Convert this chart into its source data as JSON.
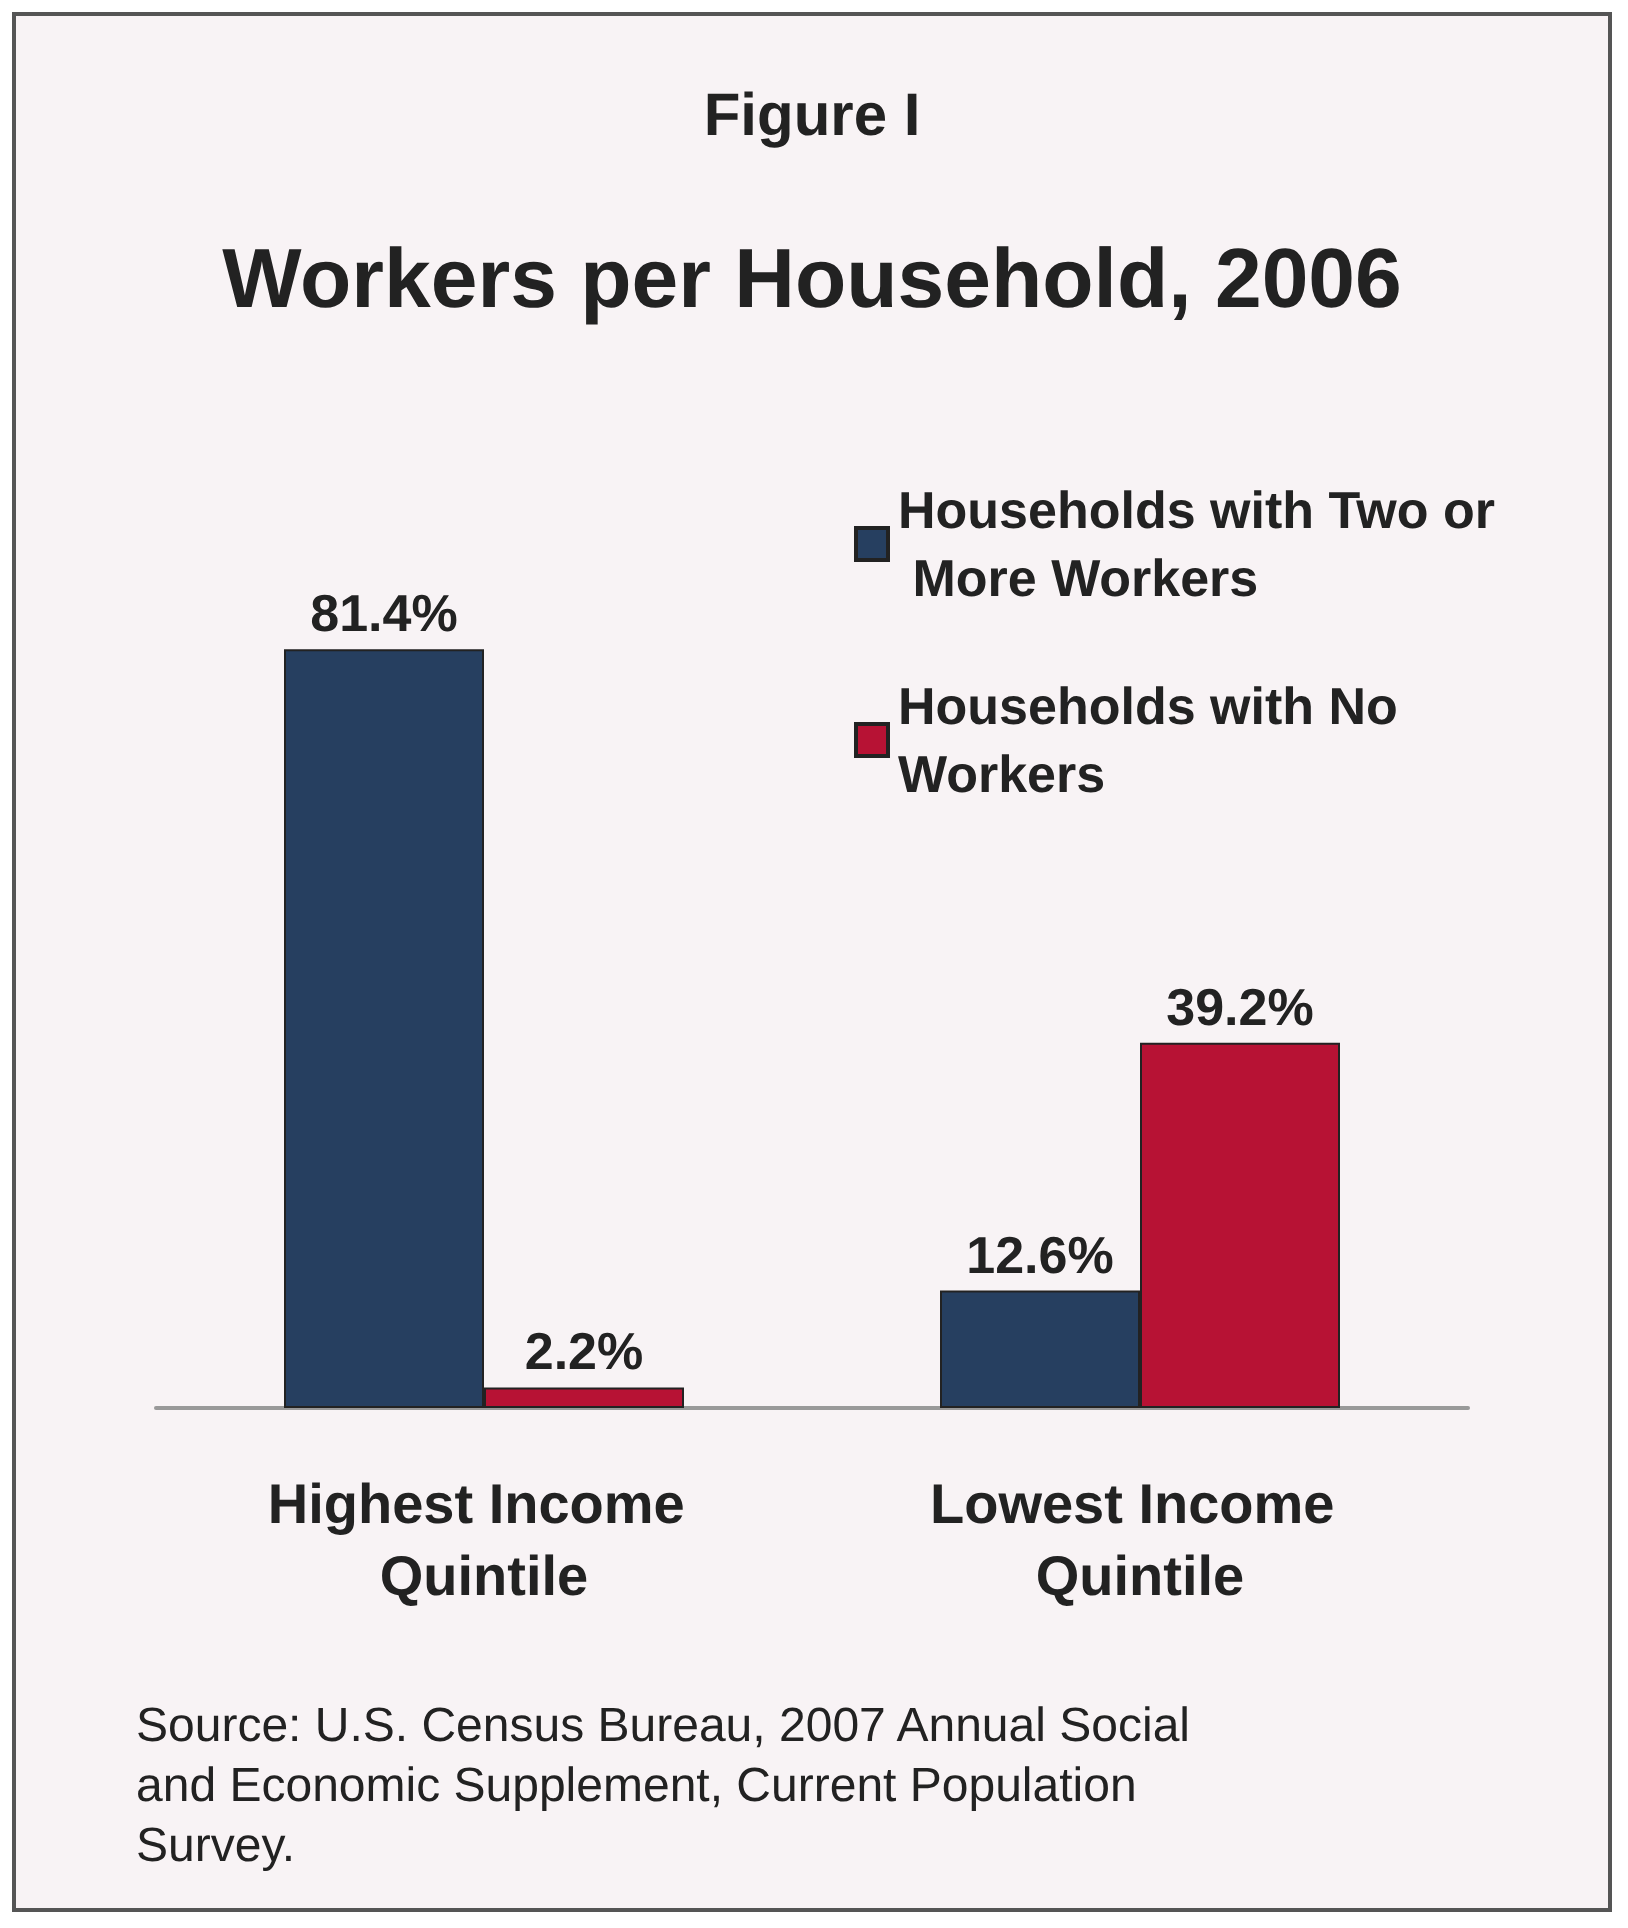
{
  "chart_data": {
    "type": "bar",
    "title": "Figure I",
    "subtitle": "Workers per Household, 2006",
    "categories": [
      "Highest Income Quintile",
      "Lowest Income Quintile"
    ],
    "series": [
      {
        "name": "Households with Two or More Workers",
        "color": "#263f60",
        "values": [
          81.4,
          12.6
        ],
        "value_labels": [
          "81.4%",
          "12.6%"
        ]
      },
      {
        "name": "Households with No Workers",
        "color": "#b71234",
        "values": [
          2.2,
          39.2
        ],
        "value_labels": [
          "2.2%",
          "39.2%"
        ]
      }
    ],
    "annotations": [
      "Source: U.S. Census Bureau, 2007 Annual Social and Economic Supplement, Current Population Survey."
    ],
    "legend": "top right"
  }
}
